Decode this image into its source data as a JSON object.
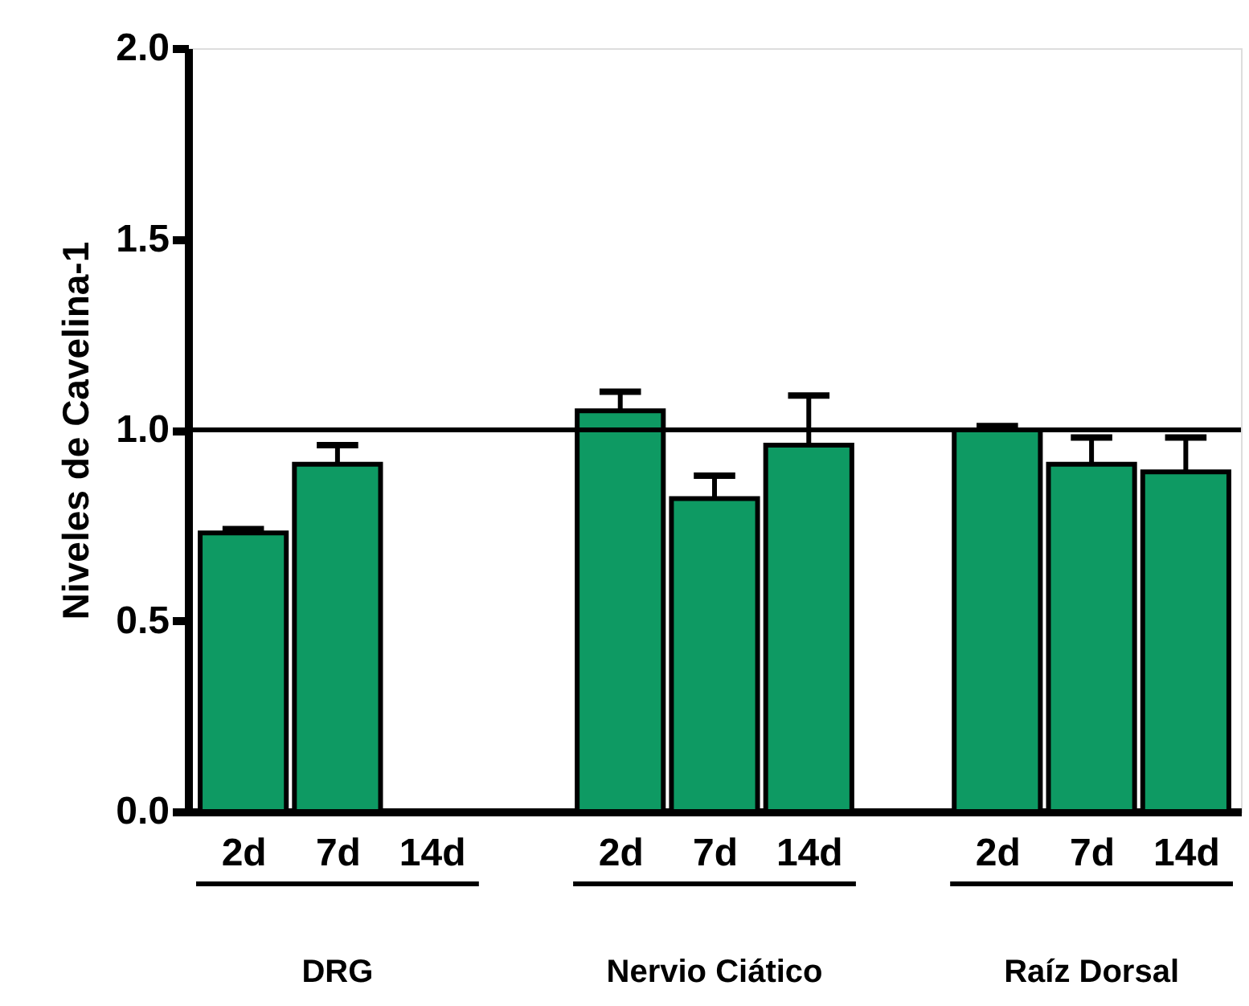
{
  "chart_data": {
    "type": "bar",
    "ylabel": "Niveles de Cavelina-1",
    "categories": [
      "2d",
      "7d",
      "14d",
      null,
      "2d",
      "7d",
      "14d",
      null,
      "2d",
      "7d",
      "14d"
    ],
    "values": [
      0.73,
      0.91,
      null,
      null,
      1.05,
      0.82,
      0.96,
      null,
      1.0,
      0.91,
      0.89
    ],
    "errors": [
      [
        0.73,
        0.74
      ],
      [
        0.91,
        0.96
      ],
      null,
      null,
      [
        1.05,
        1.1
      ],
      [
        0.82,
        0.88
      ],
      [
        0.96,
        1.09
      ],
      null,
      [
        1.0,
        1.01
      ],
      [
        0.91,
        0.98
      ],
      [
        0.89,
        0.98
      ]
    ],
    "color": "#0e9a63",
    "ylim": [
      0,
      2
    ],
    "yticks": [
      {
        "value": 0,
        "label": "0.0"
      },
      {
        "value": 0.5,
        "label": "0.5"
      },
      {
        "value": 1,
        "label": "1.0"
      },
      {
        "value": 1.5,
        "label": "1.5"
      },
      {
        "value": 2,
        "label": "2.0"
      }
    ],
    "ref_lines": [
      {
        "axis": "y",
        "value": 1,
        "label": null,
        "color": "#000000"
      }
    ],
    "annotations": [
      "DRG",
      "Nervio Ciático",
      "Raíz Dorsal"
    ],
    "grid": false
  }
}
